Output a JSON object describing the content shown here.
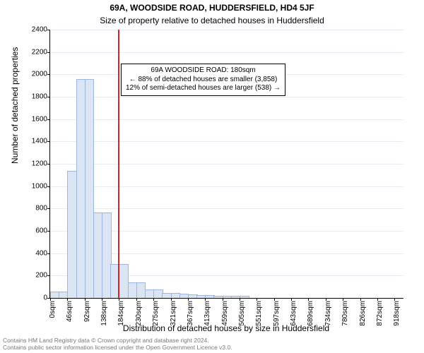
{
  "title": "69A, WOODSIDE ROAD, HUDDERSFIELD, HD4 5JF",
  "subtitle": "Size of property relative to detached houses in Huddersfield",
  "ylabel": "Number of detached properties",
  "xlabel": "Distribution of detached houses by size in Huddersfield",
  "annotation": {
    "line1": "69A WOODSIDE ROAD: 180sqm",
    "line2": "← 88% of detached houses are smaller (3,858)",
    "line3": "12% of semi-detached houses are larger (538) →"
  },
  "footer": {
    "line1": "Contains HM Land Registry data © Crown copyright and database right 2024.",
    "line2": "Contains public sector information licensed under the Open Government Licence v3.0."
  },
  "chart": {
    "type": "histogram",
    "y_max": 2400,
    "y_ticks": [
      0,
      200,
      400,
      600,
      800,
      1000,
      1200,
      1400,
      1600,
      1800,
      2000,
      2200,
      2400
    ],
    "x_max": 942,
    "x_tick_step": 45.9,
    "x_tick_count": 21,
    "x_unit": "sqm",
    "bin_width": 22.95,
    "bar_fill": "#dbe5f4",
    "bar_stroke": "#9db6de",
    "grid_color": "#e6ecf5",
    "reference_line": {
      "x": 180,
      "color": "#d62728"
    },
    "values": [
      50,
      50,
      1130,
      1950,
      1950,
      760,
      760,
      300,
      300,
      130,
      130,
      70,
      70,
      40,
      40,
      30,
      25,
      20,
      20,
      15,
      15,
      10,
      10,
      0,
      0,
      0,
      0,
      0,
      0,
      0,
      0,
      0,
      0,
      0,
      0,
      0,
      0,
      0,
      0,
      0,
      0
    ]
  }
}
